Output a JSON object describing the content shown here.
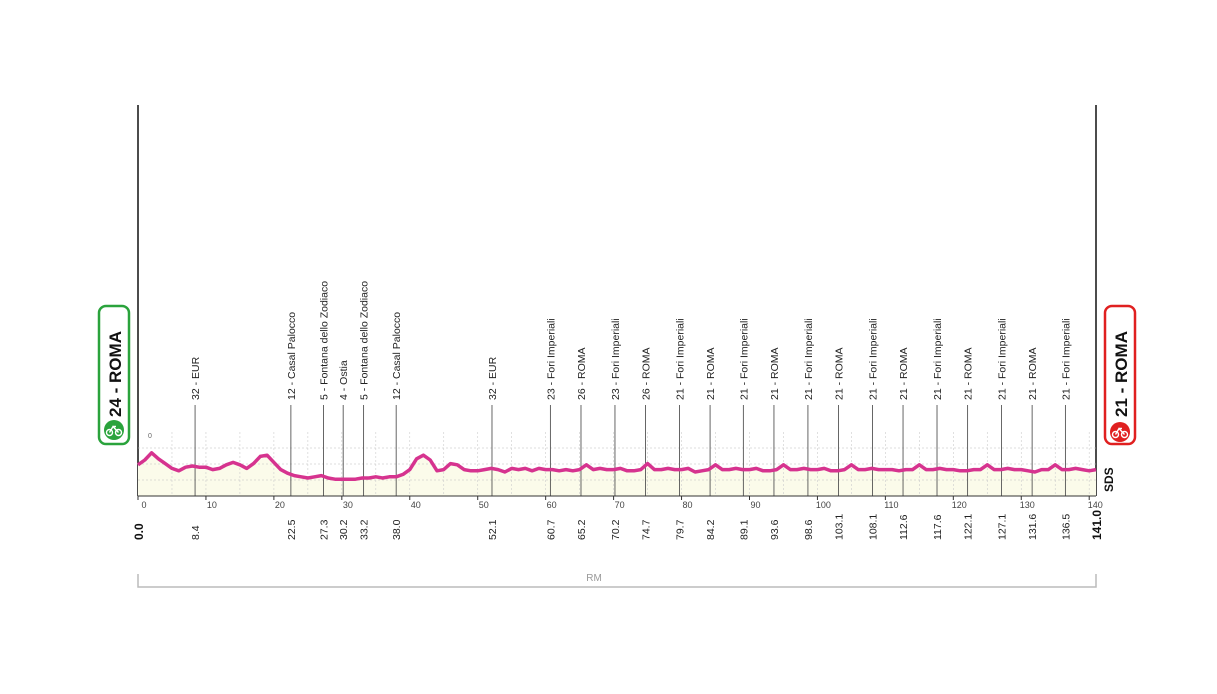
{
  "chart_data": {
    "type": "area",
    "title": "",
    "start": {
      "label": "24 - ROMA",
      "km": "0.0",
      "color": "#2aa33c"
    },
    "finish": {
      "label": "21 - ROMA",
      "km": "141.0",
      "color": "#e02020"
    },
    "x_range": [
      0,
      141
    ],
    "y_range": [
      0,
      100
    ],
    "x_ticks": [
      "0",
      "10",
      "20",
      "30",
      "40",
      "50",
      "60",
      "70",
      "80",
      "90",
      "100",
      "110",
      "120",
      "130",
      "140"
    ],
    "y_tick_label": "0",
    "line_color": "#d6338f",
    "fill_color": "#fbfbea",
    "profile": [
      [
        0,
        26
      ],
      [
        1,
        30
      ],
      [
        2,
        36
      ],
      [
        3,
        31
      ],
      [
        4,
        27
      ],
      [
        5,
        23
      ],
      [
        6,
        21
      ],
      [
        7,
        24
      ],
      [
        8,
        25
      ],
      [
        9,
        24
      ],
      [
        10,
        24
      ],
      [
        11,
        22
      ],
      [
        12,
        23
      ],
      [
        13,
        26
      ],
      [
        14,
        28
      ],
      [
        15,
        26
      ],
      [
        16,
        23
      ],
      [
        17,
        27
      ],
      [
        18,
        33
      ],
      [
        19,
        34
      ],
      [
        20,
        28
      ],
      [
        21,
        22
      ],
      [
        22,
        19
      ],
      [
        23,
        17
      ],
      [
        24,
        16
      ],
      [
        25,
        15
      ],
      [
        26,
        16
      ],
      [
        27,
        17
      ],
      [
        28,
        15
      ],
      [
        29,
        14
      ],
      [
        30,
        14
      ],
      [
        31,
        14
      ],
      [
        32,
        14
      ],
      [
        33,
        15
      ],
      [
        34,
        15
      ],
      [
        35,
        16
      ],
      [
        36,
        15
      ],
      [
        37,
        16
      ],
      [
        38,
        16
      ],
      [
        39,
        18
      ],
      [
        40,
        22
      ],
      [
        41,
        31
      ],
      [
        42,
        34
      ],
      [
        43,
        30
      ],
      [
        44,
        21
      ],
      [
        45,
        22
      ],
      [
        46,
        27
      ],
      [
        47,
        26
      ],
      [
        48,
        22
      ],
      [
        49,
        21
      ],
      [
        50,
        21
      ],
      [
        51,
        22
      ],
      [
        52,
        23
      ],
      [
        53,
        22
      ],
      [
        54,
        20
      ],
      [
        55,
        23
      ],
      [
        56,
        22
      ],
      [
        57,
        23
      ],
      [
        58,
        21
      ],
      [
        59,
        23
      ],
      [
        60,
        22
      ],
      [
        61,
        22
      ],
      [
        62,
        21
      ],
      [
        63,
        22
      ],
      [
        64,
        21
      ],
      [
        65,
        22
      ],
      [
        66,
        26
      ],
      [
        67,
        22
      ],
      [
        68,
        23
      ],
      [
        69,
        22
      ],
      [
        70,
        22
      ],
      [
        71,
        23
      ],
      [
        72,
        21
      ],
      [
        73,
        21
      ],
      [
        74,
        22
      ],
      [
        75,
        27
      ],
      [
        76,
        22
      ],
      [
        77,
        22
      ],
      [
        78,
        23
      ],
      [
        79,
        22
      ],
      [
        80,
        22
      ],
      [
        81,
        23
      ],
      [
        82,
        20
      ],
      [
        83,
        21
      ],
      [
        84,
        22
      ],
      [
        85,
        26
      ],
      [
        86,
        22
      ],
      [
        87,
        22
      ],
      [
        88,
        23
      ],
      [
        89,
        22
      ],
      [
        90,
        22
      ],
      [
        91,
        23
      ],
      [
        92,
        21
      ],
      [
        93,
        21
      ],
      [
        94,
        22
      ],
      [
        95,
        26
      ],
      [
        96,
        22
      ],
      [
        97,
        22
      ],
      [
        98,
        23
      ],
      [
        99,
        22
      ],
      [
        100,
        22
      ],
      [
        101,
        23
      ],
      [
        102,
        21
      ],
      [
        103,
        21
      ],
      [
        104,
        22
      ],
      [
        105,
        26
      ],
      [
        106,
        22
      ],
      [
        107,
        22
      ],
      [
        108,
        23
      ],
      [
        109,
        22
      ],
      [
        110,
        22
      ],
      [
        111,
        22
      ],
      [
        112,
        21
      ],
      [
        113,
        22
      ],
      [
        114,
        22
      ],
      [
        115,
        26
      ],
      [
        116,
        22
      ],
      [
        117,
        22
      ],
      [
        118,
        23
      ],
      [
        119,
        22
      ],
      [
        120,
        22
      ],
      [
        121,
        21
      ],
      [
        122,
        21
      ],
      [
        123,
        22
      ],
      [
        124,
        22
      ],
      [
        125,
        26
      ],
      [
        126,
        22
      ],
      [
        127,
        22
      ],
      [
        128,
        23
      ],
      [
        129,
        22
      ],
      [
        130,
        22
      ],
      [
        131,
        21
      ],
      [
        132,
        20
      ],
      [
        133,
        22
      ],
      [
        134,
        22
      ],
      [
        135,
        26
      ],
      [
        136,
        22
      ],
      [
        137,
        22
      ],
      [
        138,
        23
      ],
      [
        139,
        22
      ],
      [
        140,
        21
      ],
      [
        141,
        22
      ]
    ],
    "waypoints": [
      {
        "km": 8.4,
        "km_label": "8.4",
        "label": "32 - EUR"
      },
      {
        "km": 22.5,
        "km_label": "22.5",
        "label": "12 - Casal Palocco"
      },
      {
        "km": 27.3,
        "km_label": "27.3",
        "label": "5 - Fontana dello Zodiaco"
      },
      {
        "km": 30.2,
        "km_label": "30.2",
        "label": "4 - Ostia"
      },
      {
        "km": 33.2,
        "km_label": "33.2",
        "label": "5 - Fontana dello Zodiaco"
      },
      {
        "km": 38.0,
        "km_label": "38.0",
        "label": "12 - Casal Palocco"
      },
      {
        "km": 52.1,
        "km_label": "52.1",
        "label": "32 - EUR"
      },
      {
        "km": 60.7,
        "km_label": "60.7",
        "label": "23 - Fori Imperiali"
      },
      {
        "km": 65.2,
        "km_label": "65.2",
        "label": "26 - ROMA"
      },
      {
        "km": 70.2,
        "km_label": "70.2",
        "label": "23 - Fori Imperiali"
      },
      {
        "km": 74.7,
        "km_label": "74.7",
        "label": "26 - ROMA"
      },
      {
        "km": 79.7,
        "km_label": "79.7",
        "label": "21 - Fori Imperiali"
      },
      {
        "km": 84.2,
        "km_label": "84.2",
        "label": "21 - ROMA"
      },
      {
        "km": 89.1,
        "km_label": "89.1",
        "label": "21 - Fori Imperiali"
      },
      {
        "km": 93.6,
        "km_label": "93.6",
        "label": "21 - ROMA"
      },
      {
        "km": 98.6,
        "km_label": "98.6",
        "label": "21 - Fori Imperiali"
      },
      {
        "km": 103.1,
        "km_label": "103.1",
        "label": "21 - ROMA"
      },
      {
        "km": 108.1,
        "km_label": "108.1",
        "label": "21 - Fori Imperiali"
      },
      {
        "km": 112.6,
        "km_label": "112.6",
        "label": "21 - ROMA"
      },
      {
        "km": 117.6,
        "km_label": "117.6",
        "label": "21 - Fori Imperiali"
      },
      {
        "km": 122.1,
        "km_label": "122.1",
        "label": "21 - ROMA"
      },
      {
        "km": 127.1,
        "km_label": "127.1",
        "label": "21 - Fori Imperiali"
      },
      {
        "km": 131.6,
        "km_label": "131.6",
        "label": "21 - ROMA"
      },
      {
        "km": 136.5,
        "km_label": "136.5",
        "label": "21 - Fori Imperiali"
      }
    ],
    "region_label": "RM",
    "brand": "SDS"
  }
}
